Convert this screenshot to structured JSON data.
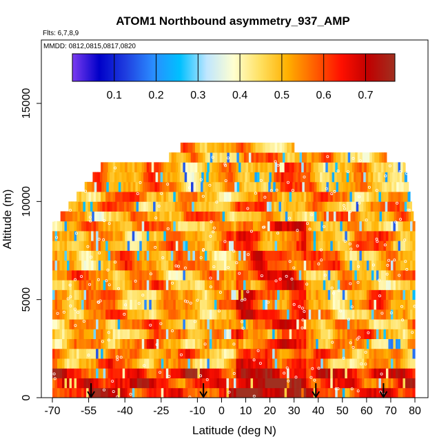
{
  "chart_data": {
    "type": "heatmap",
    "title": "ATOM1 Northbound asymmetry_937_AMP",
    "flights_label": "Flts: 6,7,8,9",
    "dates_label": "MMDD: 0812,0815,0817,0820",
    "xlabel": "Latitude (deg N)",
    "ylabel": "Altitude (m)",
    "xlim": [
      -70,
      80
    ],
    "ylim": [
      0,
      17500
    ],
    "x_ticks": [
      -70,
      -55,
      -40,
      -25,
      -10,
      0,
      10,
      20,
      30,
      40,
      50,
      60,
      70,
      80
    ],
    "y_ticks": [
      0,
      5000,
      10000,
      15000
    ],
    "colorbar": {
      "min": 0.0,
      "max": 0.77,
      "ticks": [
        0.1,
        0.2,
        0.3,
        0.4,
        0.5,
        0.6,
        0.7
      ],
      "stops": [
        "#7b3cf0",
        "#0000c8",
        "#1f3fe0",
        "#2a8cff",
        "#00c0ff",
        "#bfe6ff",
        "#ffffd0",
        "#ffe060",
        "#ffb000",
        "#ff6000",
        "#ff1000",
        "#c00000",
        "#a03020"
      ]
    },
    "data_extent": {
      "lat_min": -70,
      "lat_max": 80,
      "alt_max": 13000
    },
    "arrow_latitudes": [
      -54,
      -7.5,
      39,
      67
    ]
  },
  "colors": {
    "frame": "#000000",
    "marker": "#ffffff"
  }
}
